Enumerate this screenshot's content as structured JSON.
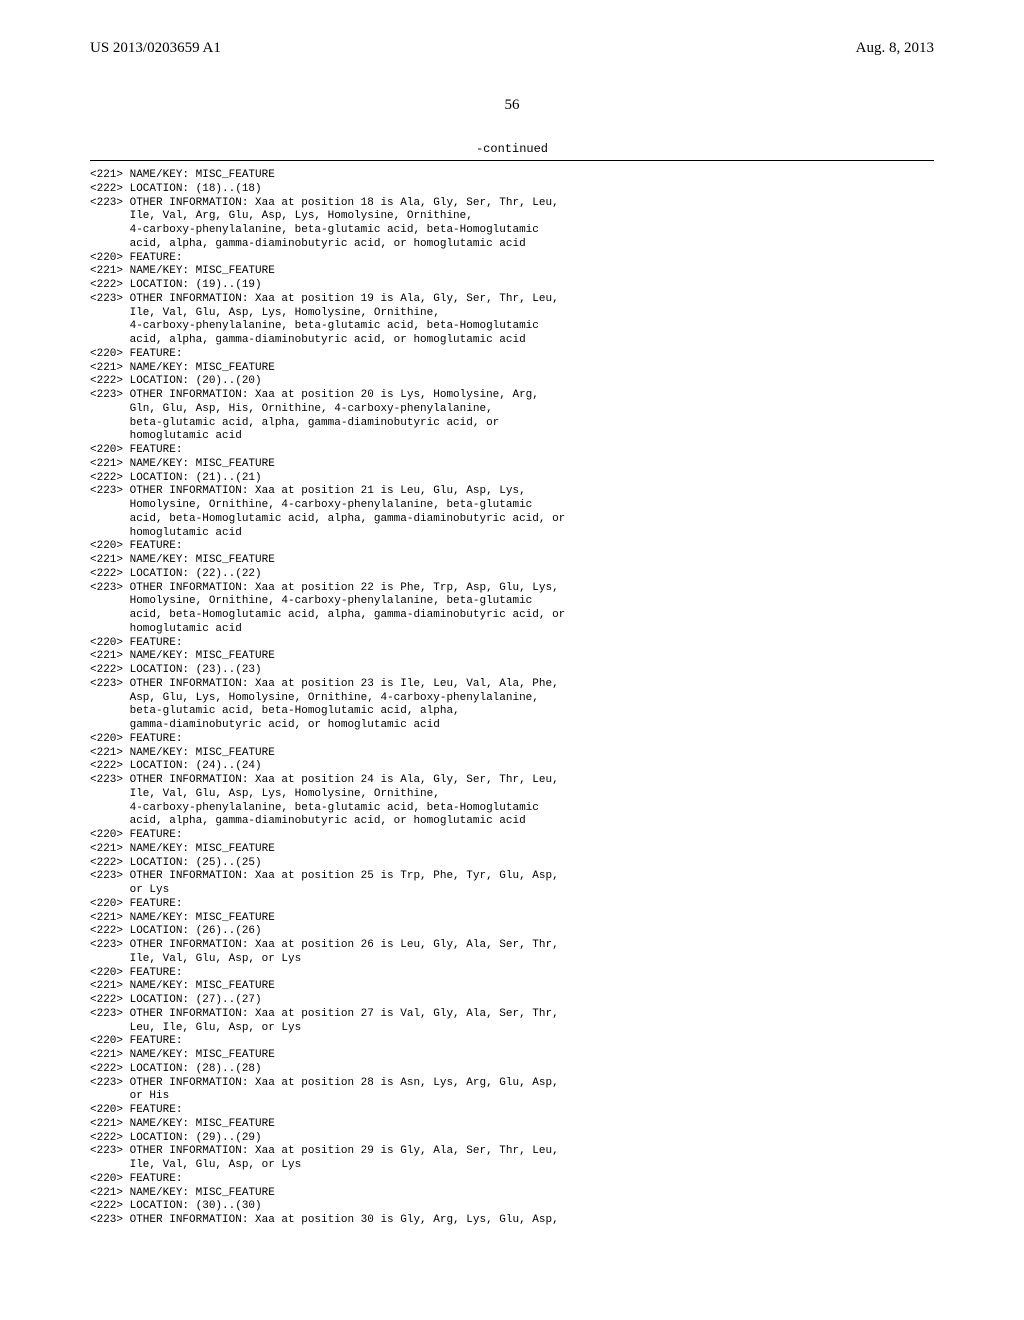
{
  "header": {
    "left": "US 2013/0203659 A1",
    "right": "Aug. 8, 2013"
  },
  "page_number": "56",
  "continued_label": "-continued",
  "features": [
    {
      "name_key": "<221> NAME/KEY: MISC_FEATURE",
      "location": "<222> LOCATION: (18)..(18)",
      "other_lead": "<223> OTHER INFORMATION: Xaa at position 18 is Ala, Gly, Ser, Thr, Leu,",
      "other_cont": [
        "Ile, Val, Arg, Glu, Asp, Lys, Homolysine, Ornithine,",
        "4-carboxy-phenylalanine, beta-glutamic acid, beta-Homoglutamic",
        "acid, alpha, gamma-diaminobutyric acid, or homoglutamic acid"
      ],
      "feature_tag": "<220> FEATURE:"
    },
    {
      "name_key": "<221> NAME/KEY: MISC_FEATURE",
      "location": "<222> LOCATION: (19)..(19)",
      "other_lead": "<223> OTHER INFORMATION: Xaa at position 19 is Ala, Gly, Ser, Thr, Leu,",
      "other_cont": [
        "Ile, Val, Glu, Asp, Lys, Homolysine, Ornithine,",
        "4-carboxy-phenylalanine, beta-glutamic acid, beta-Homoglutamic",
        "acid, alpha, gamma-diaminobutyric acid, or homoglutamic acid"
      ],
      "feature_tag": "<220> FEATURE:"
    },
    {
      "name_key": "<221> NAME/KEY: MISC_FEATURE",
      "location": "<222> LOCATION: (20)..(20)",
      "other_lead": "<223> OTHER INFORMATION: Xaa at position 20 is Lys, Homolysine, Arg,",
      "other_cont": [
        "Gln, Glu, Asp, His, Ornithine, 4-carboxy-phenylalanine,",
        "beta-glutamic acid, alpha, gamma-diaminobutyric acid, or",
        "homoglutamic acid"
      ],
      "feature_tag": "<220> FEATURE:"
    },
    {
      "name_key": "<221> NAME/KEY: MISC_FEATURE",
      "location": "<222> LOCATION: (21)..(21)",
      "other_lead": "<223> OTHER INFORMATION: Xaa at position 21 is Leu, Glu, Asp, Lys,",
      "other_cont": [
        "Homolysine, Ornithine, 4-carboxy-phenylalanine, beta-glutamic",
        "acid, beta-Homoglutamic acid, alpha, gamma-diaminobutyric acid, or",
        "homoglutamic acid"
      ],
      "feature_tag": "<220> FEATURE:"
    },
    {
      "name_key": "<221> NAME/KEY: MISC_FEATURE",
      "location": "<222> LOCATION: (22)..(22)",
      "other_lead": "<223> OTHER INFORMATION: Xaa at position 22 is Phe, Trp, Asp, Glu, Lys,",
      "other_cont": [
        "Homolysine, Ornithine, 4-carboxy-phenylalanine, beta-glutamic",
        "acid, beta-Homoglutamic acid, alpha, gamma-diaminobutyric acid, or",
        "homoglutamic acid"
      ],
      "feature_tag": "<220> FEATURE:"
    },
    {
      "name_key": "<221> NAME/KEY: MISC_FEATURE",
      "location": "<222> LOCATION: (23)..(23)",
      "other_lead": "<223> OTHER INFORMATION: Xaa at position 23 is Ile, Leu, Val, Ala, Phe,",
      "other_cont": [
        "Asp, Glu, Lys, Homolysine, Ornithine, 4-carboxy-phenylalanine,",
        "beta-glutamic acid, beta-Homoglutamic acid, alpha,",
        "gamma-diaminobutyric acid, or homoglutamic acid"
      ],
      "feature_tag": "<220> FEATURE:"
    },
    {
      "name_key": "<221> NAME/KEY: MISC_FEATURE",
      "location": "<222> LOCATION: (24)..(24)",
      "other_lead": "<223> OTHER INFORMATION: Xaa at position 24 is Ala, Gly, Ser, Thr, Leu,",
      "other_cont": [
        "Ile, Val, Glu, Asp, Lys, Homolysine, Ornithine,",
        "4-carboxy-phenylalanine, beta-glutamic acid, beta-Homoglutamic",
        "acid, alpha, gamma-diaminobutyric acid, or homoglutamic acid"
      ],
      "feature_tag": "<220> FEATURE:"
    },
    {
      "name_key": "<221> NAME/KEY: MISC_FEATURE",
      "location": "<222> LOCATION: (25)..(25)",
      "other_lead": "<223> OTHER INFORMATION: Xaa at position 25 is Trp, Phe, Tyr, Glu, Asp,",
      "other_cont": [
        "or Lys"
      ],
      "feature_tag": "<220> FEATURE:"
    },
    {
      "name_key": "<221> NAME/KEY: MISC_FEATURE",
      "location": "<222> LOCATION: (26)..(26)",
      "other_lead": "<223> OTHER INFORMATION: Xaa at position 26 is Leu, Gly, Ala, Ser, Thr,",
      "other_cont": [
        "Ile, Val, Glu, Asp, or Lys"
      ],
      "feature_tag": "<220> FEATURE:"
    },
    {
      "name_key": "<221> NAME/KEY: MISC_FEATURE",
      "location": "<222> LOCATION: (27)..(27)",
      "other_lead": "<223> OTHER INFORMATION: Xaa at position 27 is Val, Gly, Ala, Ser, Thr,",
      "other_cont": [
        "Leu, Ile, Glu, Asp, or Lys"
      ],
      "feature_tag": "<220> FEATURE:"
    },
    {
      "name_key": "<221> NAME/KEY: MISC_FEATURE",
      "location": "<222> LOCATION: (28)..(28)",
      "other_lead": "<223> OTHER INFORMATION: Xaa at position 28 is Asn, Lys, Arg, Glu, Asp,",
      "other_cont": [
        "or His"
      ],
      "feature_tag": "<220> FEATURE:"
    },
    {
      "name_key": "<221> NAME/KEY: MISC_FEATURE",
      "location": "<222> LOCATION: (29)..(29)",
      "other_lead": "<223> OTHER INFORMATION: Xaa at position 29 is Gly, Ala, Ser, Thr, Leu,",
      "other_cont": [
        "Ile, Val, Glu, Asp, or Lys"
      ],
      "feature_tag": "<220> FEATURE:"
    },
    {
      "name_key": "<221> NAME/KEY: MISC_FEATURE",
      "location": "<222> LOCATION: (30)..(30)",
      "other_lead": "<223> OTHER INFORMATION: Xaa at position 30 is Gly, Arg, Lys, Glu, Asp,",
      "other_cont": [],
      "feature_tag": null
    }
  ]
}
